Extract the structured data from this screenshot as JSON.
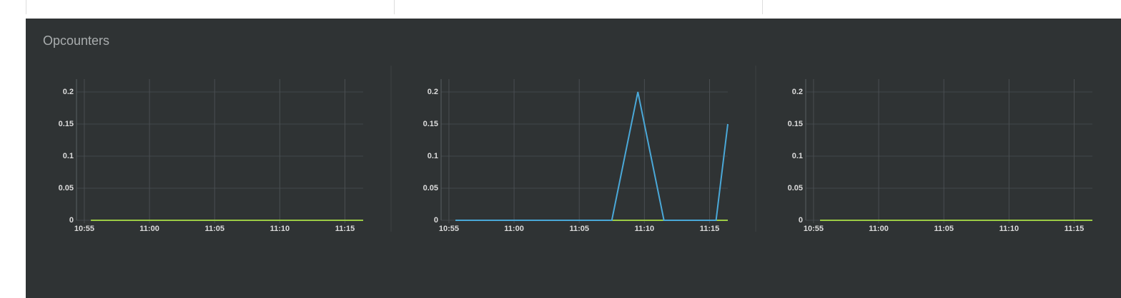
{
  "title": "Opcounters",
  "chart_data": [
    {
      "type": "line",
      "x": [
        655.5,
        657.5,
        659.5,
        661.5,
        663.5,
        665.5,
        667.5,
        669.5,
        671.5,
        673.5,
        675.5,
        676.4
      ],
      "series": [
        {
          "color": "#9ccc45",
          "values": [
            0,
            0,
            0,
            0,
            0,
            0,
            0,
            0,
            0,
            0,
            0,
            0
          ]
        }
      ],
      "xlim": [
        654.4,
        676.4
      ],
      "ylim": [
        0,
        0.22
      ],
      "xticks": [
        {
          "value": 655,
          "label": "10:55"
        },
        {
          "value": 660,
          "label": "11:00"
        },
        {
          "value": 665,
          "label": "11:05"
        },
        {
          "value": 670,
          "label": "11:10"
        },
        {
          "value": 675,
          "label": "11:15"
        }
      ],
      "yticks": [
        0,
        0.05,
        0.1,
        0.15,
        0.2
      ],
      "grid": true
    },
    {
      "type": "line",
      "x": [
        655.5,
        657.5,
        659.5,
        661.5,
        663.5,
        665.5,
        667.5,
        669.5,
        671.5,
        673.5,
        675.5,
        676.4
      ],
      "series": [
        {
          "color": "#9ccc45",
          "values": [
            0,
            0,
            0,
            0,
            0,
            0,
            0,
            0,
            0,
            0,
            0,
            0
          ]
        },
        {
          "color": "#4aa8d8",
          "values": [
            0,
            0,
            0,
            0,
            0,
            0,
            0,
            0.2,
            0,
            0,
            0,
            0.15
          ]
        }
      ],
      "xlim": [
        654.4,
        676.4
      ],
      "ylim": [
        0,
        0.22
      ],
      "xticks": [
        {
          "value": 655,
          "label": "10:55"
        },
        {
          "value": 660,
          "label": "11:00"
        },
        {
          "value": 665,
          "label": "11:05"
        },
        {
          "value": 670,
          "label": "11:10"
        },
        {
          "value": 675,
          "label": "11:15"
        }
      ],
      "yticks": [
        0,
        0.05,
        0.1,
        0.15,
        0.2
      ],
      "grid": true
    },
    {
      "type": "line",
      "x": [
        655.5,
        657.5,
        659.5,
        661.5,
        663.5,
        665.5,
        667.5,
        669.5,
        671.5,
        673.5,
        675.5,
        676.4
      ],
      "series": [
        {
          "color": "#9ccc45",
          "values": [
            0,
            0,
            0,
            0,
            0,
            0,
            0,
            0,
            0,
            0,
            0,
            0
          ]
        }
      ],
      "xlim": [
        654.4,
        676.4
      ],
      "ylim": [
        0,
        0.22
      ],
      "xticks": [
        {
          "value": 655,
          "label": "10:55"
        },
        {
          "value": 660,
          "label": "11:00"
        },
        {
          "value": 665,
          "label": "11:05"
        },
        {
          "value": 670,
          "label": "11:10"
        },
        {
          "value": 675,
          "label": "11:15"
        }
      ],
      "yticks": [
        0,
        0.05,
        0.1,
        0.15,
        0.2
      ],
      "grid": true
    }
  ]
}
